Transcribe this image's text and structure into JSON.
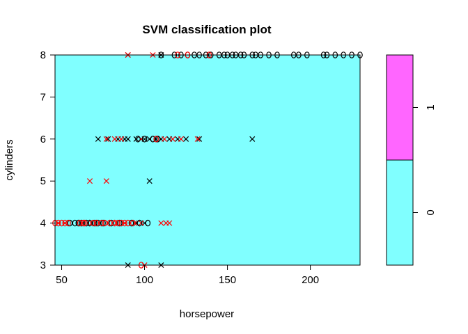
{
  "chart_data": {
    "type": "scatter",
    "title": "SVM classification plot",
    "xlabel": "horsepower",
    "ylabel": "cylinders",
    "xlim": [
      46,
      230
    ],
    "ylim": [
      3,
      8
    ],
    "x_ticks": [
      50,
      100,
      150,
      200
    ],
    "y_ticks": [
      3,
      4,
      5,
      6,
      7,
      8
    ],
    "grid": false,
    "region_color": "#80FFFF",
    "class_colors": {
      "0": "#80FFFF",
      "1": "#FF66FF"
    },
    "legend": {
      "placement": "right",
      "type": "color-key",
      "levels": [
        "0",
        "1"
      ],
      "colors": [
        "#80FFFF",
        "#FF66FF"
      ]
    },
    "marker_legend": {
      "support_vector": "x",
      "other": "o"
    },
    "series": [
      {
        "marker": "x",
        "color": "#000000",
        "points": [
          [
            90,
            8
          ],
          [
            110,
            8
          ],
          [
            72,
            6
          ],
          [
            78,
            6
          ],
          [
            84,
            6
          ],
          [
            88,
            6
          ],
          [
            90,
            6
          ],
          [
            95,
            6
          ],
          [
            100,
            6
          ],
          [
            103,
            6
          ],
          [
            107,
            6
          ],
          [
            110,
            6
          ],
          [
            115,
            6
          ],
          [
            120,
            6
          ],
          [
            125,
            6
          ],
          [
            133,
            6
          ],
          [
            165,
            6
          ],
          [
            103,
            5
          ],
          [
            95,
            4
          ],
          [
            100,
            4
          ],
          [
            90,
            3
          ],
          [
            110,
            3
          ]
        ]
      },
      {
        "marker": "x",
        "color": "#FF0000",
        "points": [
          [
            90,
            8
          ],
          [
            105,
            8
          ],
          [
            77,
            6
          ],
          [
            82,
            6
          ],
          [
            86,
            6
          ],
          [
            98,
            6
          ],
          [
            112,
            6
          ],
          [
            117,
            6
          ],
          [
            122,
            6
          ],
          [
            132,
            6
          ],
          [
            67,
            5
          ],
          [
            77,
            5
          ],
          [
            48,
            4
          ],
          [
            52,
            4
          ],
          [
            68,
            4
          ],
          [
            78,
            4
          ],
          [
            83,
            4
          ],
          [
            88,
            4
          ],
          [
            94,
            4
          ],
          [
            98,
            4
          ],
          [
            110,
            4
          ],
          [
            113,
            4
          ],
          [
            115,
            4
          ],
          [
            100,
            3
          ]
        ]
      },
      {
        "marker": "o",
        "color": "#000000",
        "points": [
          [
            110,
            8
          ],
          [
            118,
            8
          ],
          [
            122,
            8
          ],
          [
            126,
            8
          ],
          [
            130,
            8
          ],
          [
            133,
            8
          ],
          [
            137,
            8
          ],
          [
            140,
            8
          ],
          [
            145,
            8
          ],
          [
            148,
            8
          ],
          [
            150,
            8
          ],
          [
            153,
            8
          ],
          [
            155,
            8
          ],
          [
            158,
            8
          ],
          [
            160,
            8
          ],
          [
            165,
            8
          ],
          [
            167,
            8
          ],
          [
            170,
            8
          ],
          [
            175,
            8
          ],
          [
            180,
            8
          ],
          [
            190,
            8
          ],
          [
            193,
            8
          ],
          [
            198,
            8
          ],
          [
            208,
            8
          ],
          [
            210,
            8
          ],
          [
            215,
            8
          ],
          [
            220,
            8
          ],
          [
            225,
            8
          ],
          [
            230,
            8
          ],
          [
            96,
            6
          ],
          [
            100,
            6
          ],
          [
            105,
            6
          ],
          [
            108,
            6
          ],
          [
            55,
            4
          ],
          [
            58,
            4
          ],
          [
            60,
            4
          ],
          [
            62,
            4
          ],
          [
            65,
            4
          ],
          [
            67,
            4
          ],
          [
            70,
            4
          ],
          [
            72,
            4
          ],
          [
            75,
            4
          ],
          [
            80,
            4
          ],
          [
            85,
            4
          ],
          [
            92,
            4
          ],
          [
            97,
            4
          ],
          [
            102,
            4
          ]
        ]
      },
      {
        "marker": "o",
        "color": "#FF0000",
        "points": [
          [
            120,
            8
          ],
          [
            126,
            8
          ],
          [
            139,
            8
          ],
          [
            107,
            6
          ],
          [
            46,
            4
          ],
          [
            48,
            4
          ],
          [
            50,
            4
          ],
          [
            52,
            4
          ],
          [
            54,
            4
          ],
          [
            61,
            4
          ],
          [
            63,
            4
          ],
          [
            64,
            4
          ],
          [
            69,
            4
          ],
          [
            71,
            4
          ],
          [
            74,
            4
          ],
          [
            76,
            4
          ],
          [
            79,
            4
          ],
          [
            82,
            4
          ],
          [
            84,
            4
          ],
          [
            86,
            4
          ],
          [
            88,
            4
          ],
          [
            90,
            4
          ],
          [
            93,
            4
          ],
          [
            98,
            3
          ]
        ]
      }
    ]
  }
}
